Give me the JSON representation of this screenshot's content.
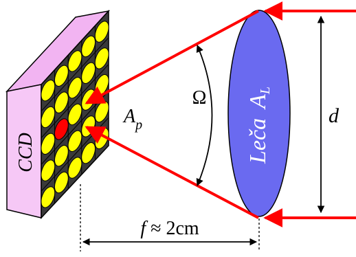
{
  "labels": {
    "sensor": "CCD",
    "pixel_area": "A",
    "pixel_area_sub": "p",
    "solid_angle": "Ω",
    "lens_name": "Leča",
    "lens_area": "A",
    "lens_area_sub": "L",
    "diameter": "d",
    "focal_symbol": "f",
    "focal_value": " ≈ 2cm"
  },
  "pixel_grid": {
    "rows": 5,
    "cols": 5,
    "highlighted_row": 2,
    "highlighted_col": 1
  },
  "colors": {
    "sensor_front": "#f6c8f6",
    "sensor_side": "#f2b4f2",
    "pixel_cell": "#3a3a3a",
    "pixel_fill": "#ffff00",
    "pixel_highlight": "#ff0000",
    "lens_fill": "#6a6af0",
    "rays": "#ff0000",
    "lines": "#000000",
    "label_on_lens": "#ffffff"
  }
}
